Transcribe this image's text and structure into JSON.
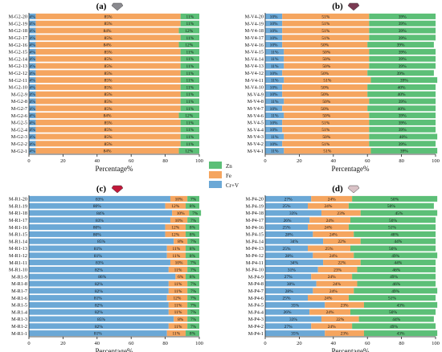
{
  "legend": [
    {
      "label": "Zn",
      "color": "#5cbf77"
    },
    {
      "label": "Fe",
      "color": "#f5a55f"
    },
    {
      "label": "Cr+V",
      "color": "#6ba8d6"
    }
  ],
  "chart_data": [
    {
      "type": "bar",
      "stacked": "horizontal-100%",
      "title": "(a)",
      "gem_icon": "gray-gem-icon",
      "xlabel": "Percentage%",
      "xlim": [
        0,
        100
      ],
      "xticks": [
        0,
        20,
        40,
        60,
        80,
        100
      ],
      "categories": [
        "M-G2-20",
        "M-G2-19",
        "M-G2-18",
        "M-G2-17",
        "M-G2-16",
        "M-G2-15",
        "M-G2-14",
        "M-G2-13",
        "M-G2-12",
        "M-G2-11",
        "M-G2-10",
        "M-G2-9",
        "M-G2-8",
        "M-G2-7",
        "M-G2-6",
        "M-G2-5",
        "M-G2-4",
        "M-G2-3",
        "M-G2-2",
        "M-G2-1"
      ],
      "series": [
        {
          "name": "Cr+V",
          "color": "#6ba8d6",
          "values": [
            4,
            4,
            4,
            4,
            4,
            4,
            4,
            4,
            4,
            4,
            4,
            4,
            4,
            4,
            4,
            4,
            4,
            4,
            4,
            4
          ],
          "labels": [
            "4%",
            "4%",
            "4%",
            "4%",
            "4%",
            "4%",
            "4%",
            "4%",
            "4%",
            "4%",
            "4%",
            "4%",
            "4%",
            "4%",
            "4%",
            "4%",
            "4%",
            "4%",
            "4%",
            "4%"
          ]
        },
        {
          "name": "Fe",
          "color": "#f5a55f",
          "values": [
            85,
            85,
            84,
            85,
            84,
            85,
            85,
            85,
            85,
            85,
            85,
            85,
            85,
            85,
            84,
            85,
            85,
            85,
            85,
            84
          ],
          "labels": [
            "85%",
            "85%",
            "84%",
            "85%",
            "84%",
            "85%",
            "85%",
            "85%",
            "85%",
            "85%",
            "85%",
            "85%",
            "85%",
            "85%",
            "84%",
            "85%",
            "85%",
            "85%",
            "85%",
            "84%"
          ]
        },
        {
          "name": "Zn",
          "color": "#5cbf77",
          "values": [
            11,
            11,
            12,
            11,
            12,
            11,
            11,
            11,
            11,
            11,
            11,
            11,
            11,
            11,
            12,
            11,
            11,
            11,
            11,
            12
          ],
          "labels": [
            "11%",
            "11%",
            "12%",
            "11%",
            "12%",
            "11%",
            "11%",
            "11%",
            "11%",
            "11%",
            "11%",
            "11%",
            "11%",
            "11%",
            "12%",
            "11%",
            "11%",
            "11%",
            "11%",
            "12%"
          ]
        }
      ]
    },
    {
      "type": "bar",
      "stacked": "horizontal-100%",
      "title": "(b)",
      "gem_icon": "pink-gem-icon",
      "xlabel": "Percentage%",
      "xlim": [
        0,
        100
      ],
      "xticks": [
        0,
        20,
        40,
        60,
        80,
        100
      ],
      "categories": [
        "M-V4-20",
        "M-V4-19",
        "M-V4-18",
        "M-V4-17",
        "M-V4-16",
        "M-V4-15",
        "M-V4-14",
        "M-V4-13",
        "M-V4-12",
        "M-V4-11",
        "M-V4-10",
        "M-V4-9",
        "M-V4-8",
        "M-V4-7",
        "M-V4-6",
        "M-V4-5",
        "M-V4-4",
        "M-V4-3",
        "M-V4-2",
        "M-V4-1"
      ],
      "series": [
        {
          "name": "Cr+V",
          "color": "#6ba8d6",
          "values": [
            10,
            10,
            10,
            10,
            10,
            11,
            11,
            11,
            10,
            11,
            10,
            10,
            11,
            10,
            11,
            10,
            10,
            11,
            10,
            11
          ],
          "labels": [
            "10%",
            "10%",
            "10%",
            "10%",
            "10%",
            "11%",
            "11%",
            "11%",
            "10%",
            "11%",
            "10%",
            "10%",
            "11%",
            "10%",
            "11%",
            "10%",
            "10%",
            "11%",
            "10%",
            "11%"
          ]
        },
        {
          "name": "Fe",
          "color": "#f5a55f",
          "values": [
            51,
            51,
            51,
            51,
            50,
            50,
            50,
            50,
            50,
            51,
            50,
            50,
            50,
            50,
            50,
            51,
            51,
            50,
            51,
            51
          ],
          "labels": [
            "51%",
            "51%",
            "51%",
            "51%",
            "50%",
            "50%",
            "50%",
            "50%",
            "50%",
            "51%",
            "50%",
            "50%",
            "50%",
            "50%",
            "50%",
            "51%",
            "51%",
            "50%",
            "51%",
            "51%"
          ]
        },
        {
          "name": "Zn",
          "color": "#5cbf77",
          "values": [
            39,
            39,
            39,
            39,
            39,
            39,
            39,
            39,
            39,
            39,
            40,
            40,
            39,
            40,
            39,
            39,
            39,
            40,
            39,
            39
          ],
          "labels": [
            "39%",
            "39%",
            "39%",
            "39%",
            "39%",
            "39%",
            "39%",
            "39%",
            "39%",
            "39%",
            "40%",
            "40%",
            "39%",
            "40%",
            "39%",
            "39%",
            "39%",
            "40%",
            "39%",
            "39%"
          ]
        }
      ]
    },
    {
      "type": "bar",
      "stacked": "horizontal-100%",
      "title": "(c)",
      "gem_icon": "red-gem-icon",
      "xlabel": "Percentage%",
      "xlim": [
        0,
        100
      ],
      "xticks": [
        0,
        20,
        40,
        60,
        80,
        100
      ],
      "categories": [
        "M-R1-20",
        "M-R1-19",
        "M-R1-18",
        "M-R1-17",
        "M-R1-16",
        "M-R1-15",
        "M-R1-14",
        "M-R1-13",
        "M-R1-12",
        "M-R1-11",
        "M-R1-10",
        "M-R1-9",
        "M-R1-8",
        "M-R1-7",
        "M-R1-6",
        "M-R1-5",
        "M-R1-4",
        "M-R1-3",
        "M-R1-2",
        "M-R1-1"
      ],
      "series": [
        {
          "name": "Cr+V",
          "color": "#6ba8d6",
          "values": [
            83,
            80,
            84,
            83,
            80,
            80,
            85,
            81,
            81,
            83,
            82,
            86,
            82,
            82,
            81,
            82,
            82,
            85,
            82,
            81
          ],
          "labels": [
            "83%",
            "80%",
            "84%",
            "83%",
            "80%",
            "80%",
            "85%",
            "81%",
            "81%",
            "83%",
            "82%",
            "86%",
            "82%",
            "82%",
            "81%",
            "82%",
            "82%",
            "85%",
            "82%",
            "81%"
          ]
        },
        {
          "name": "Fe",
          "color": "#f5a55f",
          "values": [
            10,
            12,
            10,
            10,
            12,
            12,
            8,
            11,
            11,
            10,
            11,
            6,
            11,
            11,
            12,
            11,
            11,
            8,
            11,
            11
          ],
          "labels": [
            "10%",
            "12%",
            "10%",
            "10%",
            "12%",
            "12%",
            "8%",
            "11%",
            "11%",
            "10%",
            "11%",
            "6%",
            "11%",
            "11%",
            "12%",
            "11%",
            "11%",
            "8%",
            "11%",
            "11%"
          ]
        },
        {
          "name": "Zn",
          "color": "#5cbf77",
          "values": [
            7,
            8,
            7,
            7,
            8,
            8,
            7,
            8,
            8,
            7,
            7,
            8,
            7,
            7,
            7,
            7,
            7,
            7,
            7,
            8
          ],
          "labels": [
            "7%",
            "8%",
            "7%",
            "7%",
            "8%",
            "8%",
            "7%",
            "8%",
            "8%",
            "7%",
            "7%",
            "8%",
            "7%",
            "7%",
            "7%",
            "7%",
            "7%",
            "7%",
            "7%",
            "8%"
          ]
        }
      ]
    },
    {
      "type": "bar",
      "stacked": "horizontal-100%",
      "title": "(d)",
      "gem_icon": "pale-gem-icon",
      "xlabel": "Percentage%",
      "xlim": [
        0,
        100
      ],
      "xticks": [
        0,
        20,
        40,
        60,
        80,
        100
      ],
      "categories": [
        "M-P4-20",
        "M-P4-19",
        "M-P4-18",
        "M-P4-17",
        "M-P4-16",
        "M-P4-15",
        "M-P4-14",
        "M-P4-13",
        "M-P4-12",
        "M-P4-11",
        "M-P4-10",
        "M-P4-9",
        "M-P4-8",
        "M-P4-7",
        "M-P4-6",
        "M-P4-5",
        "M-P4-4",
        "M-P4-3",
        "M-P4-2",
        "M-P4-1"
      ],
      "series": [
        {
          "name": "Cr+V",
          "color": "#6ba8d6",
          "values": [
            27,
            25,
            33,
            26,
            25,
            28,
            34,
            25,
            28,
            34,
            31,
            27,
            30,
            28,
            25,
            35,
            26,
            33,
            27,
            35
          ],
          "labels": [
            "27%",
            "25%",
            "33%",
            "26%",
            "25%",
            "28%",
            "34%",
            "25%",
            "28%",
            "34%",
            "31%",
            "27%",
            "30%",
            "28%",
            "25%",
            "35%",
            "26%",
            "33%",
            "27%",
            "35%"
          ]
        },
        {
          "name": "Fe",
          "color": "#f5a55f",
          "values": [
            24,
            24,
            23,
            24,
            24,
            24,
            22,
            25,
            24,
            22,
            23,
            24,
            24,
            24,
            24,
            23,
            24,
            22,
            24,
            23
          ],
          "labels": [
            "24%",
            "24%",
            "23%",
            "24%",
            "24%",
            "24%",
            "22%",
            "25%",
            "24%",
            "22%",
            "23%",
            "24%",
            "24%",
            "24%",
            "24%",
            "23%",
            "24%",
            "22%",
            "24%",
            "23%"
          ]
        },
        {
          "name": "Zn",
          "color": "#5cbf77",
          "values": [
            50,
            50,
            45,
            50,
            51,
            48,
            44,
            50,
            49,
            44,
            46,
            49,
            46,
            49,
            51,
            43,
            50,
            44,
            49,
            43
          ],
          "labels": [
            "50%",
            "50%",
            "45%",
            "50%",
            "51%",
            "48%",
            "44%",
            "50%",
            "49%",
            "44%",
            "46%",
            "49%",
            "46%",
            "49%",
            "51%",
            "43%",
            "50%",
            "44%",
            "49%",
            "43%"
          ]
        }
      ]
    }
  ]
}
